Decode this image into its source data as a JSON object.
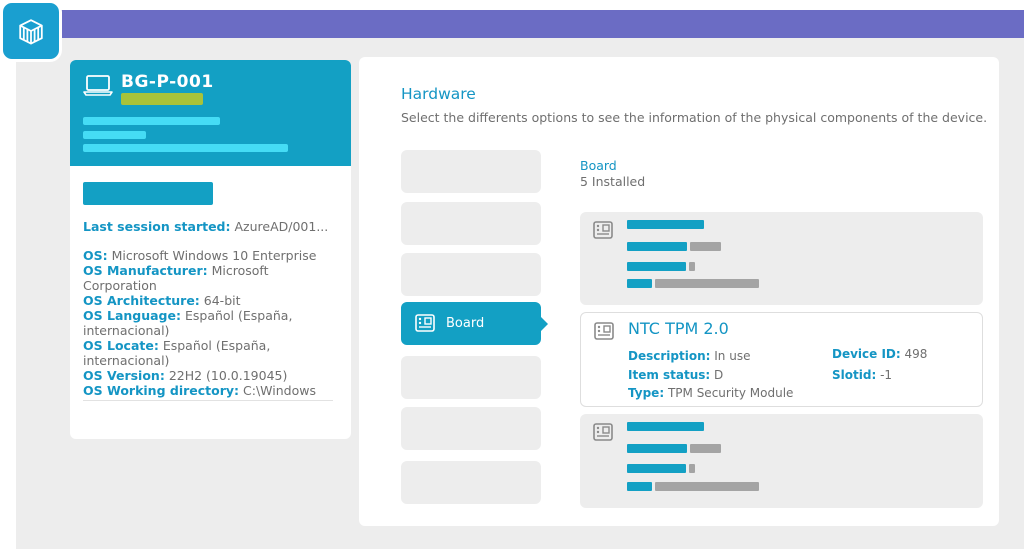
{
  "device": {
    "name": "BG-P-001",
    "last_session_label": "Last session started:",
    "last_session_value": "AzureAD/001...",
    "os": [
      {
        "label": "OS:",
        "value": "Microsoft Windows 10 Enterprise"
      },
      {
        "label": "OS Manufacturer:",
        "value": "Microsoft Corporation"
      },
      {
        "label": "OS Architecture:",
        "value": "64-bit"
      },
      {
        "label": "OS Language:",
        "value": "Español (España, internacional)"
      },
      {
        "label": "OS Locate:",
        "value": "Español (España, internacional)"
      },
      {
        "label": "OS Version:",
        "value": "22H2 (10.0.19045)"
      },
      {
        "label": "OS Working directory:",
        "value": "C:\\Windows"
      }
    ]
  },
  "hardware": {
    "title": "Hardware",
    "subtitle": "Select the differents options to see the information of the physical components of the device.",
    "active_tab": "Board",
    "section_title": "Board",
    "section_count": "5 Installed",
    "expanded_item": {
      "title": "NTC TPM 2.0",
      "fields": [
        {
          "label": "Description:",
          "value": "In use"
        },
        {
          "label": "Item status:",
          "value": "D"
        },
        {
          "label": "Type:",
          "value": "TPM Security Module"
        },
        {
          "label": "Device ID:",
          "value": "498"
        },
        {
          "label": "Slotid:",
          "value": "-1"
        }
      ]
    }
  },
  "icons": {
    "logo": "cube-stack-logo-icon",
    "device": "laptop-icon",
    "board": "circuit-board-icon"
  },
  "colors": {
    "accent": "#13a0c4",
    "topbar": "#6b6cc4",
    "placeholder": "#a4a4a4",
    "highlight": "#a8c33a"
  }
}
